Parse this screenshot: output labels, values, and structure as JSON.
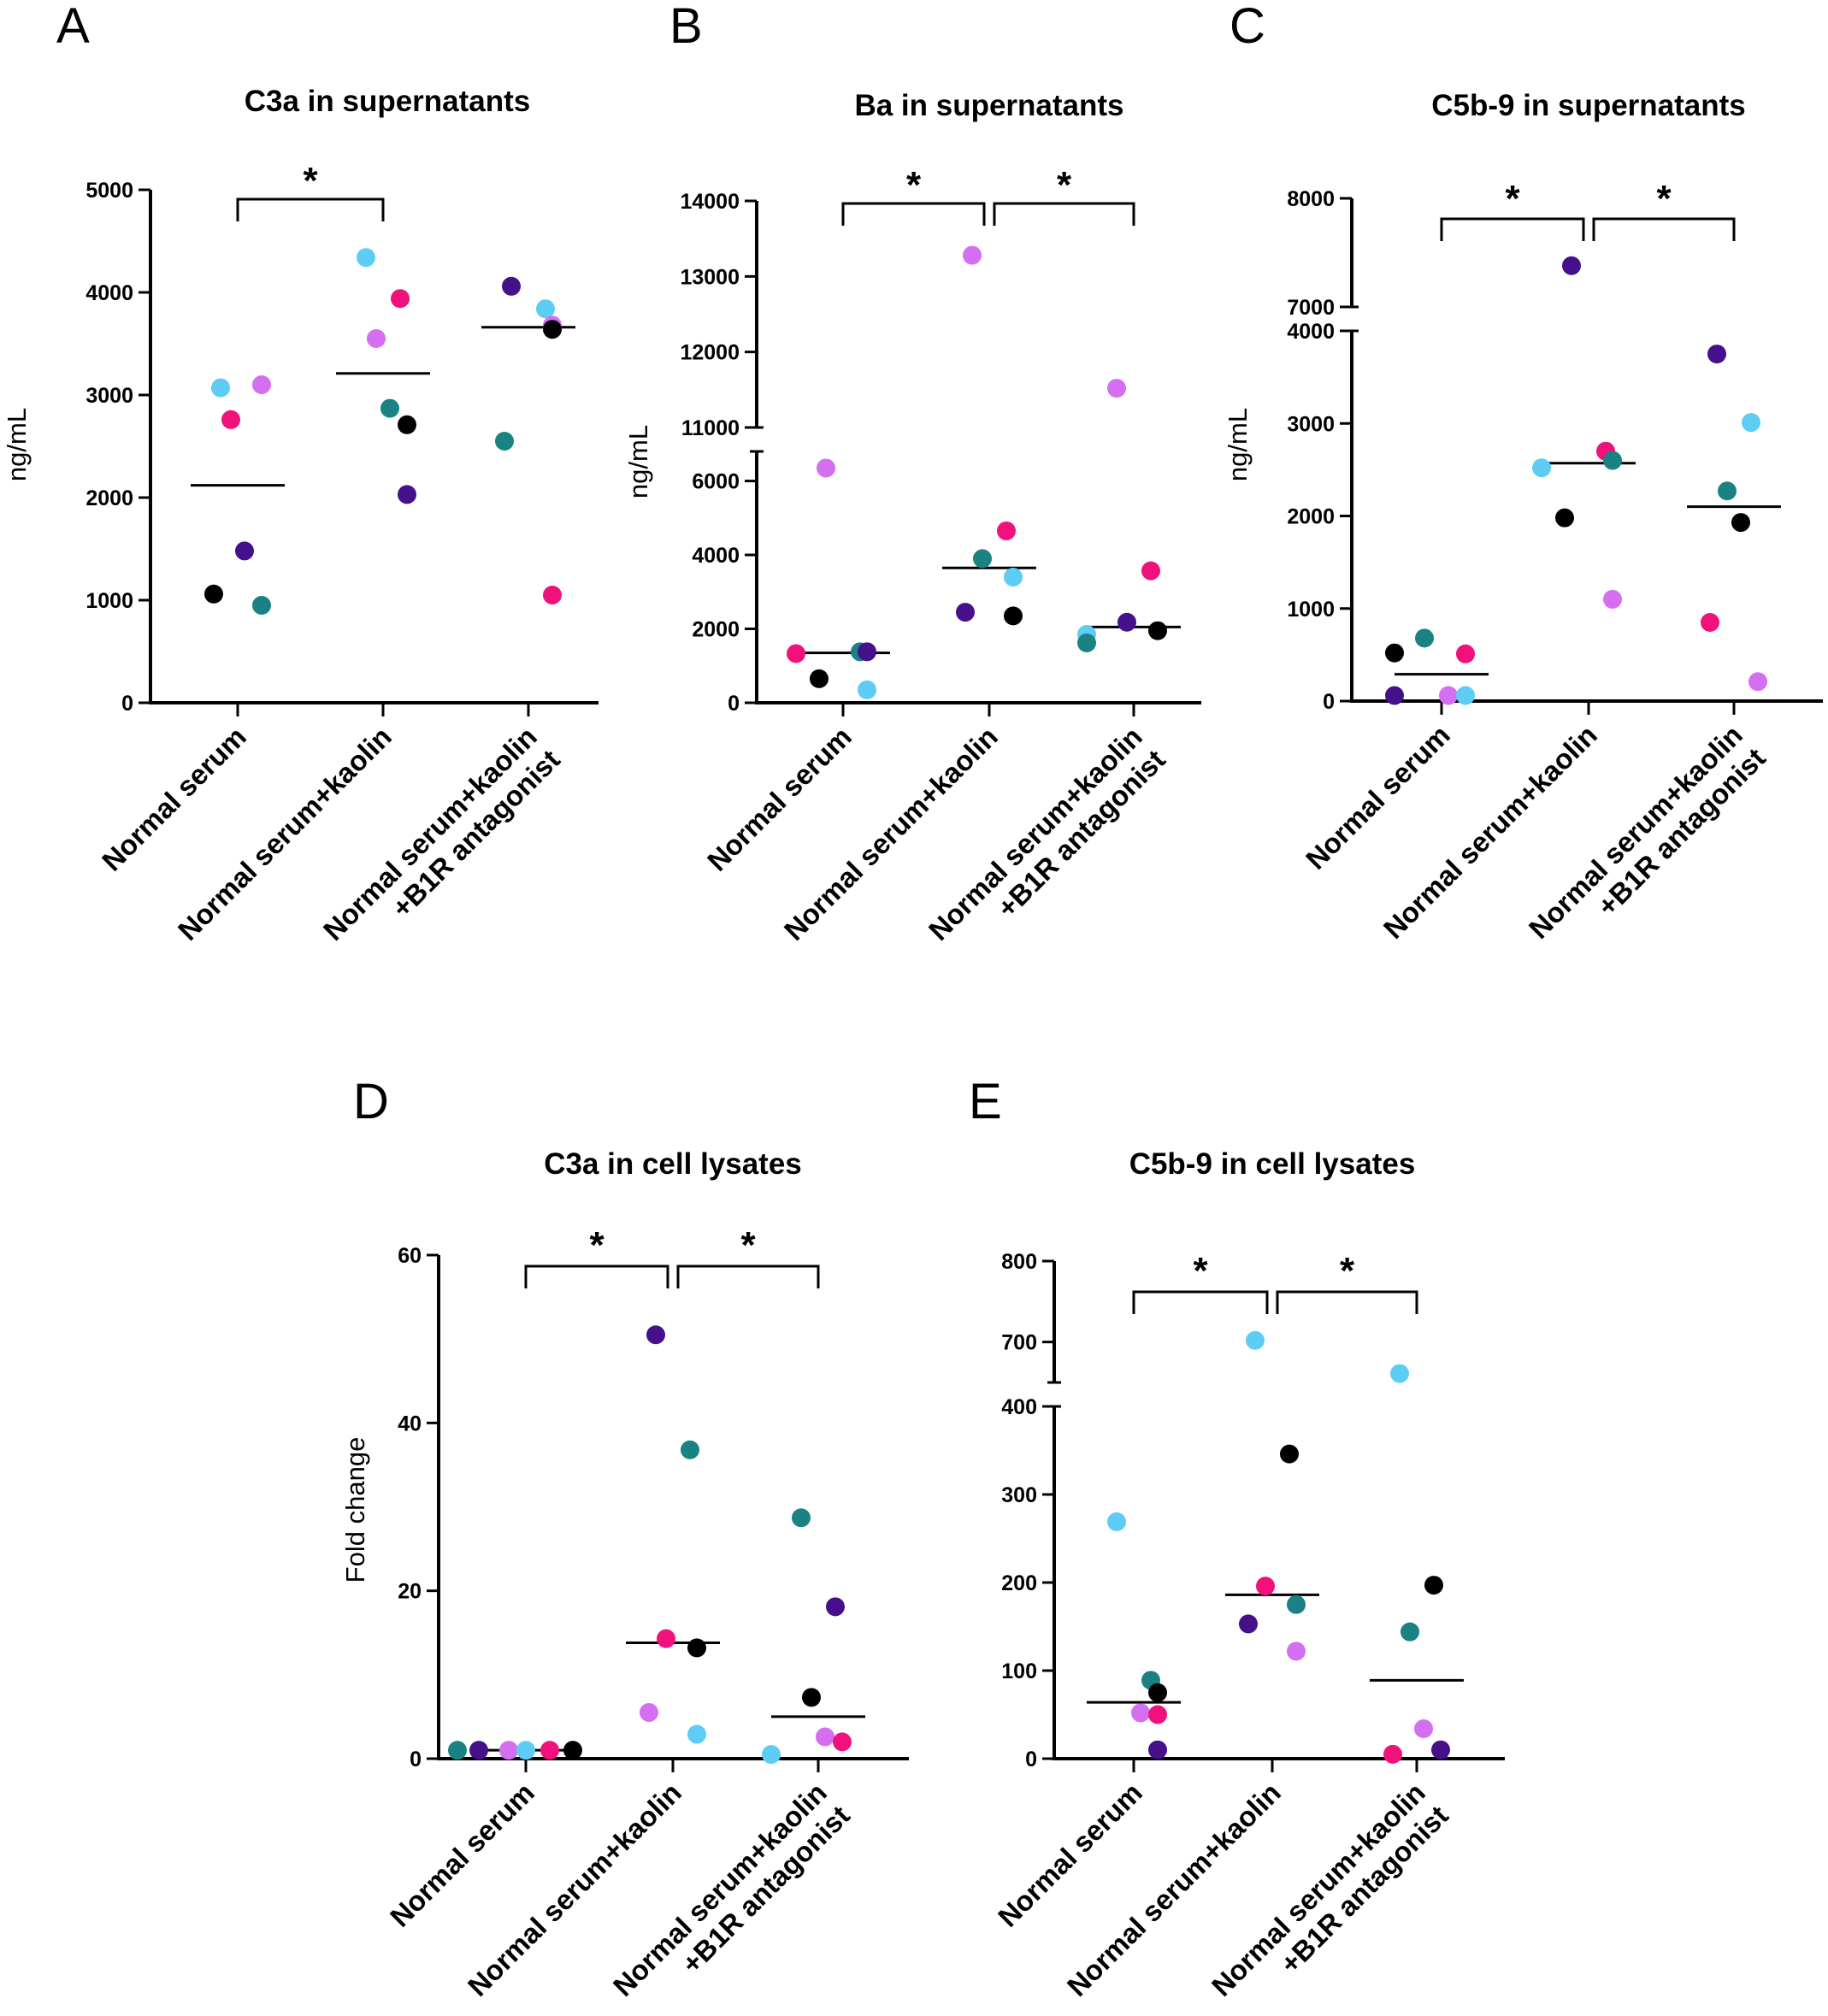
{
  "colors": {
    "cyan": "#5dcdf5",
    "violet": "#d36ff0",
    "pink": "#f0117b",
    "teal": "#1a8282",
    "purple": "#45108a",
    "black": "#000000"
  },
  "chart_data": [
    {
      "id": "A",
      "type": "scatter",
      "letter": "A",
      "title": "C3a in supernatants",
      "ylabel": "ng/mL",
      "categories": [
        "Normal serum",
        "Normal serum+kaolin",
        "Normal serum+kaolin\n+B1R antagonist"
      ],
      "category_lines": [
        [
          "Normal serum"
        ],
        [
          "Normal serum+kaolin"
        ],
        [
          "Normal serum+kaolin",
          "+B1R antagonist"
        ]
      ],
      "ylim": [
        0,
        5000
      ],
      "yticks": [
        0,
        1000,
        2000,
        3000,
        4000,
        5000
      ],
      "tick_labels": [
        "0",
        "1000",
        "2000",
        "3000",
        "4000",
        "5000"
      ],
      "medians": [
        2120,
        3210,
        3660
      ],
      "points": [
        [
          {
            "v": 3070,
            "c": "cyan"
          },
          {
            "v": 3100,
            "c": "violet"
          },
          {
            "v": 2760,
            "c": "pink"
          },
          {
            "v": 1480,
            "c": "purple"
          },
          {
            "v": 1060,
            "c": "black"
          },
          {
            "v": 950,
            "c": "teal"
          }
        ],
        [
          {
            "v": 4340,
            "c": "cyan"
          },
          {
            "v": 3940,
            "c": "pink"
          },
          {
            "v": 3550,
            "c": "violet"
          },
          {
            "v": 2870,
            "c": "teal"
          },
          {
            "v": 2710,
            "c": "black"
          },
          {
            "v": 2030,
            "c": "purple"
          }
        ],
        [
          {
            "v": 4060,
            "c": "purple"
          },
          {
            "v": 3840,
            "c": "cyan"
          },
          {
            "v": 3680,
            "c": "violet"
          },
          {
            "v": 3640,
            "c": "black"
          },
          {
            "v": 2550,
            "c": "teal"
          },
          {
            "v": 1050,
            "c": "pink"
          }
        ]
      ],
      "significance": [
        {
          "from": 0,
          "to": 1,
          "label": "*"
        }
      ]
    },
    {
      "id": "B",
      "type": "scatter",
      "letter": "B",
      "title": "Ba in supernatants",
      "ylabel": "ng/mL",
      "categories": [
        "Normal serum",
        "Normal serum+kaolin",
        "Normal serum+kaolin\n+B1R antagonist"
      ],
      "category_lines": [
        [
          "Normal serum"
        ],
        [
          "Normal serum+kaolin"
        ],
        [
          "Normal serum+kaolin",
          "+B1R antagonist"
        ]
      ],
      "broken_axis": {
        "lower": [
          0,
          6800
        ],
        "upper": [
          11000,
          14000
        ]
      },
      "yticks": [
        0,
        2000,
        4000,
        6000,
        11000,
        12000,
        13000,
        14000
      ],
      "tick_labels": [
        "0",
        "2000",
        "4000",
        "6000",
        "11000",
        "12000",
        "13000",
        "14000"
      ],
      "medians": [
        1350,
        3650,
        2050
      ],
      "points": [
        [
          {
            "v": 6350,
            "c": "violet"
          },
          {
            "v": 1380,
            "c": "teal"
          },
          {
            "v": 1380,
            "c": "purple"
          },
          {
            "v": 1330,
            "c": "pink"
          },
          {
            "v": 650,
            "c": "black"
          },
          {
            "v": 350,
            "c": "cyan"
          }
        ],
        [
          {
            "v": 13280,
            "c": "violet"
          },
          {
            "v": 4650,
            "c": "pink"
          },
          {
            "v": 3900,
            "c": "teal"
          },
          {
            "v": 3400,
            "c": "cyan"
          },
          {
            "v": 2450,
            "c": "purple"
          },
          {
            "v": 2350,
            "c": "black"
          }
        ],
        [
          {
            "v": 11520,
            "c": "violet"
          },
          {
            "v": 3570,
            "c": "pink"
          },
          {
            "v": 2180,
            "c": "purple"
          },
          {
            "v": 1950,
            "c": "black"
          },
          {
            "v": 1850,
            "c": "cyan"
          },
          {
            "v": 1620,
            "c": "teal"
          }
        ]
      ],
      "significance": [
        {
          "from": 0,
          "to": 1,
          "label": "*"
        },
        {
          "from": 1,
          "to": 2,
          "label": "*"
        }
      ]
    },
    {
      "id": "C",
      "type": "scatter",
      "letter": "C",
      "title": "C5b-9 in supernatants",
      "ylabel": "ng/mL",
      "categories": [
        "Normal serum",
        "Normal serum+kaolin",
        "Normal serum+kaolin\n+B1R antagonist"
      ],
      "category_lines": [
        [
          "Normal serum"
        ],
        [
          "Normal serum+kaolin"
        ],
        [
          "Normal serum+kaolin",
          "+B1R antagonist"
        ]
      ],
      "broken_axis": {
        "lower": [
          0,
          4000
        ],
        "upper": [
          7000,
          8000
        ]
      },
      "yticks": [
        0,
        1000,
        2000,
        3000,
        4000,
        7000,
        8000
      ],
      "tick_labels": [
        "0",
        "1000",
        "2000",
        "3000",
        "4000",
        "7000",
        "8000"
      ],
      "medians": [
        290,
        2570,
        2100
      ],
      "points": [
        [
          {
            "v": 680,
            "c": "teal"
          },
          {
            "v": 510,
            "c": "pink"
          },
          {
            "v": 520,
            "c": "black"
          },
          {
            "v": 60,
            "c": "violet"
          },
          {
            "v": 60,
            "c": "cyan"
          },
          {
            "v": 60,
            "c": "purple"
          }
        ],
        [
          {
            "v": 7380,
            "c": "purple"
          },
          {
            "v": 2700,
            "c": "pink"
          },
          {
            "v": 2600,
            "c": "teal"
          },
          {
            "v": 2520,
            "c": "cyan"
          },
          {
            "v": 1980,
            "c": "black"
          },
          {
            "v": 1100,
            "c": "violet"
          }
        ],
        [
          {
            "v": 3750,
            "c": "purple"
          },
          {
            "v": 3010,
            "c": "cyan"
          },
          {
            "v": 2270,
            "c": "teal"
          },
          {
            "v": 1930,
            "c": "black"
          },
          {
            "v": 850,
            "c": "pink"
          },
          {
            "v": 210,
            "c": "violet"
          }
        ]
      ],
      "significance": [
        {
          "from": 0,
          "to": 1,
          "label": "*"
        },
        {
          "from": 1,
          "to": 2,
          "label": "*"
        }
      ]
    },
    {
      "id": "D",
      "type": "scatter",
      "letter": "D",
      "title": "C3a in cell lysates",
      "ylabel": "Fold change",
      "categories": [
        "Normal serum",
        "Normal serum+kaolin",
        "Normal serum+kaolin\n+B1R antagonist"
      ],
      "category_lines": [
        [
          "Normal serum"
        ],
        [
          "Normal serum+kaolin"
        ],
        [
          "Normal serum+kaolin",
          "+B1R antagonist"
        ]
      ],
      "ylim": [
        0,
        60
      ],
      "yticks": [
        0,
        20,
        40,
        60
      ],
      "tick_labels": [
        "0",
        "20",
        "40",
        "60"
      ],
      "medians": [
        1,
        13.8,
        5
      ],
      "points": [
        [
          {
            "v": 1,
            "c": "violet"
          },
          {
            "v": 1,
            "c": "pink"
          },
          {
            "v": 1,
            "c": "purple"
          },
          {
            "v": 1,
            "c": "black"
          },
          {
            "v": 1,
            "c": "cyan"
          },
          {
            "v": 1,
            "c": "teal"
          }
        ],
        [
          {
            "v": 50.5,
            "c": "purple"
          },
          {
            "v": 36.8,
            "c": "teal"
          },
          {
            "v": 14.3,
            "c": "pink"
          },
          {
            "v": 13.2,
            "c": "black"
          },
          {
            "v": 5.5,
            "c": "violet"
          },
          {
            "v": 2.9,
            "c": "cyan"
          }
        ],
        [
          {
            "v": 28.7,
            "c": "teal"
          },
          {
            "v": 18.1,
            "c": "purple"
          },
          {
            "v": 7.3,
            "c": "black"
          },
          {
            "v": 2.6,
            "c": "violet"
          },
          {
            "v": 2.0,
            "c": "pink"
          },
          {
            "v": 0.5,
            "c": "cyan"
          }
        ]
      ],
      "significance": [
        {
          "from": 0,
          "to": 1,
          "label": "*"
        },
        {
          "from": 1,
          "to": 2,
          "label": "*"
        }
      ]
    },
    {
      "id": "E",
      "type": "scatter",
      "letter": "E",
      "title": "C5b-9 in cell lysates",
      "ylabel": "",
      "categories": [
        "Normal serum",
        "Normal serum+kaolin",
        "Normal serum+kaolin\n+B1R antagonist"
      ],
      "category_lines": [
        [
          "Normal serum"
        ],
        [
          "Normal serum+kaolin"
        ],
        [
          "Normal serum+kaolin",
          "+B1R antagonist"
        ]
      ],
      "broken_axis": {
        "lower": [
          0,
          400
        ],
        "upper": [
          650,
          800
        ]
      },
      "yticks": [
        0,
        100,
        200,
        300,
        400,
        700,
        800
      ],
      "tick_labels": [
        "0",
        "100",
        "200",
        "300",
        "400",
        "700",
        "800"
      ],
      "medians": [
        64,
        186,
        89
      ],
      "points": [
        [
          {
            "v": 269,
            "c": "cyan"
          },
          {
            "v": 89,
            "c": "teal"
          },
          {
            "v": 75,
            "c": "black"
          },
          {
            "v": 52,
            "c": "violet"
          },
          {
            "v": 50,
            "c": "pink"
          },
          {
            "v": 10,
            "c": "purple"
          }
        ],
        [
          {
            "v": 702,
            "c": "cyan"
          },
          {
            "v": 346,
            "c": "black"
          },
          {
            "v": 196,
            "c": "pink"
          },
          {
            "v": 175,
            "c": "teal"
          },
          {
            "v": 153,
            "c": "purple"
          },
          {
            "v": 122,
            "c": "violet"
          }
        ],
        [
          {
            "v": 661,
            "c": "cyan"
          },
          {
            "v": 197,
            "c": "black"
          },
          {
            "v": 144,
            "c": "teal"
          },
          {
            "v": 34,
            "c": "violet"
          },
          {
            "v": 5,
            "c": "pink"
          },
          {
            "v": 10,
            "c": "purple"
          }
        ]
      ],
      "significance": [
        {
          "from": 0,
          "to": 1,
          "label": "*"
        },
        {
          "from": 1,
          "to": 2,
          "label": "*"
        }
      ]
    }
  ]
}
